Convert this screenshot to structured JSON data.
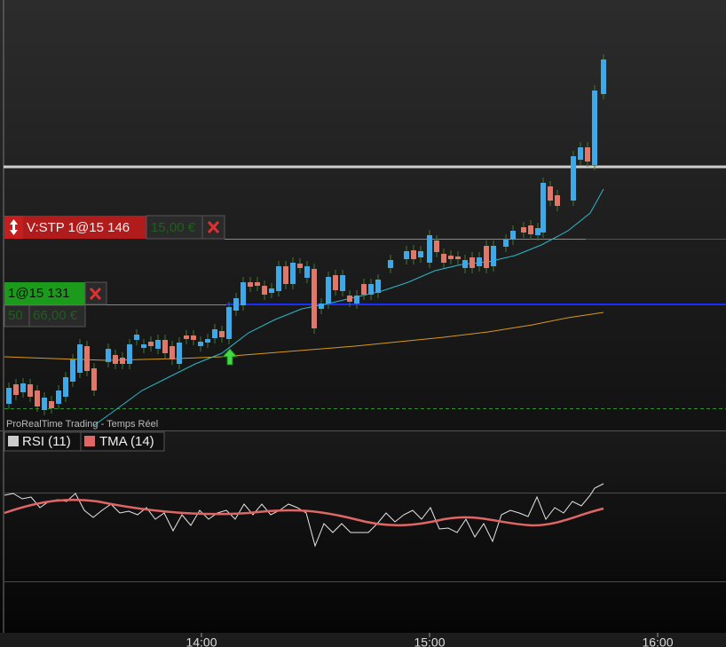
{
  "orders": {
    "stop": {
      "label": "V:STP 1@15 146",
      "amount": "15,00 €"
    },
    "limit": {
      "label": "1@15 131",
      "quantity": "50",
      "amount": "66,00 €"
    }
  },
  "source": "ProRealTime Trading - Temps Réel",
  "indicators": [
    "RSI (11)",
    "TMA (14)"
  ],
  "time_axis": [
    "14:00",
    "15:00",
    "16:00"
  ]
}
